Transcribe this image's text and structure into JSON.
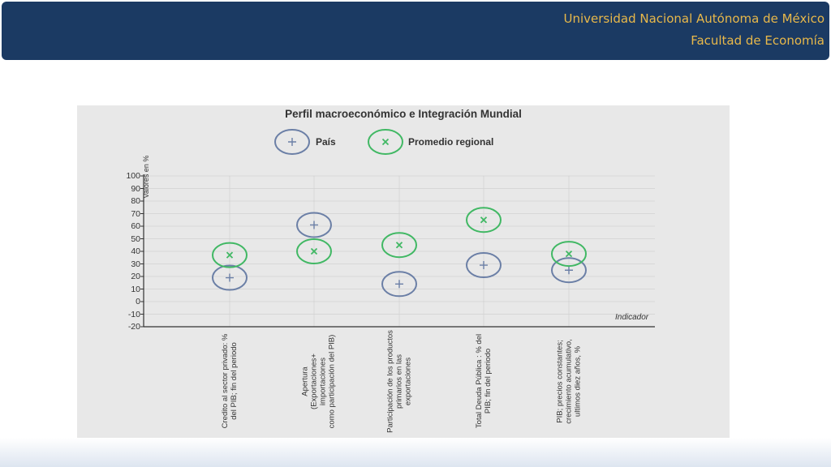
{
  "header": {
    "line1": "Universidad Nacional Autónoma de México",
    "line2": "Facultad de Economía"
  },
  "chart_data": {
    "type": "scatter",
    "title": "Perfil macroeconómico e Integración Mundial",
    "xlabel": "Indicador",
    "ylabel": "Valores en %",
    "ylim": [
      -20,
      100
    ],
    "yticks": [
      "100",
      "90",
      "80",
      "70",
      "60",
      "50",
      "40",
      "30",
      "20",
      "10",
      "0",
      "-10",
      "-20"
    ],
    "grid": true,
    "legend_position": "top",
    "categories": [
      [
        "Credito al sector privado: %",
        "del PIB; fin del periodo"
      ],
      [
        "Apertura",
        "(Exportaciones+ importaciones",
        "como participación del PIB)"
      ],
      [
        "Participación de los productos",
        "primarios en las",
        "exportaciones"
      ],
      [
        "Total Deuda Pública : % del",
        "PIB; fin del periodo"
      ],
      [
        "PIB; precios constantes;",
        "crecimiento acumulativo,",
        "ultimos diez años, %"
      ]
    ],
    "series": [
      {
        "name": "País",
        "marker": "+",
        "color": "#6b7fa6",
        "values": [
          19,
          61,
          14,
          29,
          25
        ]
      },
      {
        "name": "Promedio regional",
        "marker": "x",
        "color": "#41b864",
        "values": [
          37,
          40,
          45,
          65,
          38
        ]
      }
    ]
  }
}
